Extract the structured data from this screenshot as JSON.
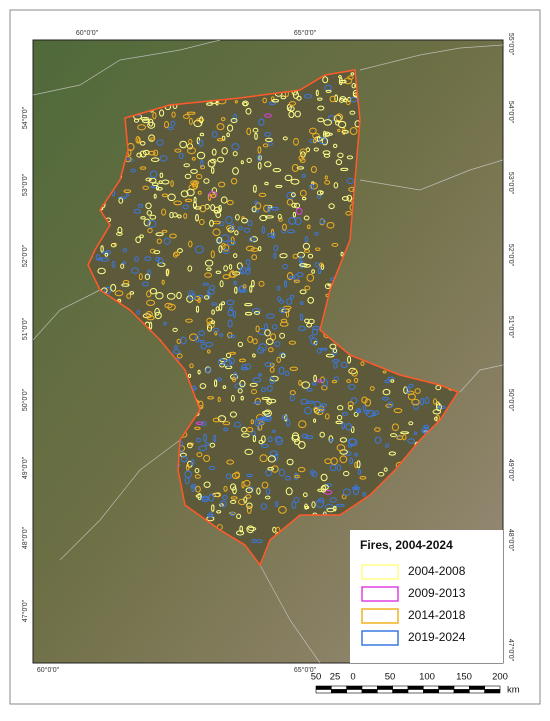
{
  "map": {
    "top_labels": [
      "60°0'0\"",
      "65°0'0\""
    ],
    "bottom_labels": [
      "60°0'0\"",
      "65°0'0\""
    ],
    "left_labels": [
      "54°0'0\"",
      "53°0'0\"",
      "52°0'0\"",
      "51°0'0\"",
      "50°0'0\"",
      "49°0'0\"",
      "48°0'0\"",
      "47°0'0\""
    ],
    "right_labels": [
      "55°0'0\"",
      "54°0'0\"",
      "53°0'0\"",
      "52°0'0\"",
      "51°0'0\"",
      "50°0'0\"",
      "49°0'0\"",
      "48°0'0\"",
      "47°0'0\""
    ],
    "legend": {
      "title": "Fires, 2004-2024",
      "items": [
        {
          "label": "2004-2008",
          "color": "#ffff88"
        },
        {
          "label": "2009-2013",
          "color": "#e040e0"
        },
        {
          "label": "2014-2018",
          "color": "#f0b020"
        },
        {
          "label": "2019-2024",
          "color": "#3a78e0"
        }
      ]
    },
    "scale_bar": {
      "labels": [
        "50",
        "25",
        "0",
        "50",
        "100",
        "150",
        "200"
      ],
      "unit": "km"
    }
  }
}
